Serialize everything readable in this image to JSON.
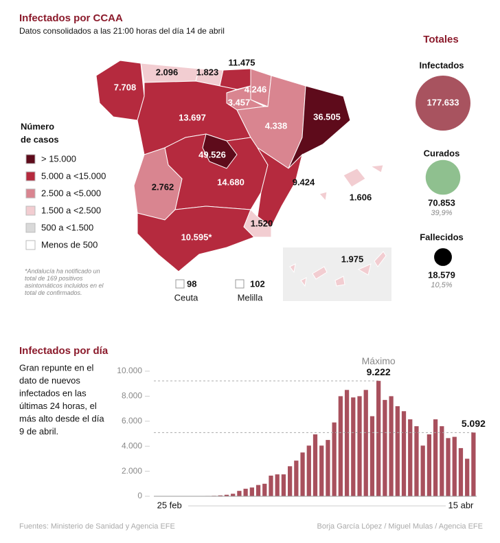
{
  "header": {
    "title": "Infectados por CCAA",
    "subtitle": "Datos consolidados a las 21:00 horas del día 14 de abril"
  },
  "legend": {
    "title_lines": [
      "Número",
      "de casos"
    ],
    "items": [
      {
        "label": "> 15.000",
        "color": "#5e0b1b"
      },
      {
        "label": "5.000 a <15.000",
        "color": "#b52a3e"
      },
      {
        "label": "2.500 a <5.000",
        "color": "#d98590"
      },
      {
        "label": "1.500 a <2.500",
        "color": "#f2cdd1"
      },
      {
        "label": "500 a <1.500",
        "color": "#d9d9d9"
      },
      {
        "label": "Menos de 500",
        "color": "#ffffff"
      }
    ]
  },
  "note_lines": [
    "*Andalucía ha notificado un",
    "total de 169 positivos",
    "asintomáticos incluidos en el",
    "total de confirmados."
  ],
  "map": {
    "regions": [
      {
        "label": "7.708",
        "color": "#b52a3e"
      },
      {
        "label": "2.096",
        "color": "#f2cdd1"
      },
      {
        "label": "1.823",
        "color": "#f2cdd1"
      },
      {
        "label": "11.475",
        "color": "#b52a3e"
      },
      {
        "label": "4.246",
        "color": "#d98590"
      },
      {
        "label": "3.457",
        "color": "#d98590"
      },
      {
        "label": "13.697",
        "color": "#b52a3e"
      },
      {
        "label": "4.338",
        "color": "#d98590"
      },
      {
        "label": "36.505",
        "color": "#5e0b1b"
      },
      {
        "label": "49.526",
        "color": "#5e0b1b"
      },
      {
        "label": "14.680",
        "color": "#b52a3e"
      },
      {
        "label": "2.762",
        "color": "#d98590"
      },
      {
        "label": "9.424",
        "color": "#b52a3e"
      },
      {
        "label": "1.520",
        "color": "#f2cdd1"
      },
      {
        "label": "10.595*",
        "color": "#b52a3e"
      },
      {
        "label": "1.606",
        "color": "#f2cdd1"
      },
      {
        "label": "1.975",
        "color": "#f2cdd1"
      },
      {
        "label": "98",
        "name": "Ceuta",
        "color": "#ffffff"
      },
      {
        "label": "102",
        "name": "Melilla",
        "color": "#ffffff"
      }
    ]
  },
  "totals": {
    "title": "Totales",
    "items": [
      {
        "name": "Infectados",
        "value": 177633,
        "value_label": "177.633",
        "color": "#a8535f"
      },
      {
        "name": "Curados",
        "value": 70853,
        "value_label": "70.853",
        "share": "39,9%",
        "color": "#8fc08f"
      },
      {
        "name": "Fallecidos",
        "value": 18579,
        "value_label": "18.579",
        "share": "10,5%",
        "color": "#000000"
      }
    ]
  },
  "chart_data": {
    "type": "bar",
    "title": "Infectados por día",
    "description_lines": [
      "Gran repunte en el",
      "dato de nuevos",
      "infectados en las",
      "últimas 24 horas, el",
      "más alto desde el día",
      "9 de abril."
    ],
    "annotation": "Máximo",
    "categories": [
      "25 feb",
      null,
      null,
      null,
      null,
      null,
      null,
      null,
      null,
      null,
      null,
      null,
      null,
      null,
      null,
      null,
      null,
      null,
      null,
      null,
      null,
      null,
      null,
      null,
      null,
      null,
      null,
      null,
      null,
      null,
      null,
      null,
      null,
      null,
      null,
      null,
      null,
      null,
      null,
      null,
      null,
      null,
      null,
      null,
      null,
      null,
      null,
      null,
      null,
      null,
      "15 abr"
    ],
    "values": [
      1,
      2,
      3,
      5,
      10,
      15,
      20,
      25,
      30,
      40,
      70,
      120,
      200,
      430,
      600,
      700,
      900,
      1000,
      1650,
      1750,
      1750,
      2400,
      2850,
      3500,
      4050,
      4950,
      4050,
      4500,
      5900,
      8000,
      8500,
      7900,
      8000,
      8500,
      6400,
      9222,
      7700,
      8000,
      7200,
      6800,
      6150,
      5600,
      4050,
      4950,
      6150,
      5600,
      4650,
      4750,
      3850,
      3000,
      5092
    ],
    "value_labels": [
      null,
      null,
      null,
      null,
      null,
      null,
      null,
      null,
      null,
      null,
      null,
      null,
      null,
      null,
      null,
      null,
      null,
      null,
      null,
      null,
      null,
      null,
      null,
      null,
      null,
      null,
      null,
      null,
      null,
      null,
      null,
      null,
      null,
      null,
      null,
      "9.222",
      null,
      null,
      null,
      null,
      null,
      null,
      null,
      null,
      null,
      null,
      null,
      null,
      null,
      null,
      "5.092"
    ],
    "color": "#a8505d",
    "ylim": [
      0,
      10000
    ],
    "yticks": [
      0,
      {
        "value": 2000,
        "label": "2.000"
      },
      {
        "value": 4000,
        "label": "4.000"
      },
      {
        "value": 6000,
        "label": "6.000"
      },
      {
        "value": 8000,
        "label": "8.000"
      },
      {
        "value": 10000,
        "label": "10.000"
      }
    ]
  },
  "footer": {
    "source": "Fuentes: Ministerio de Sanidad y Agencia EFE",
    "credit": "Borja García López / Miguel Mulas / Agencia EFE"
  }
}
